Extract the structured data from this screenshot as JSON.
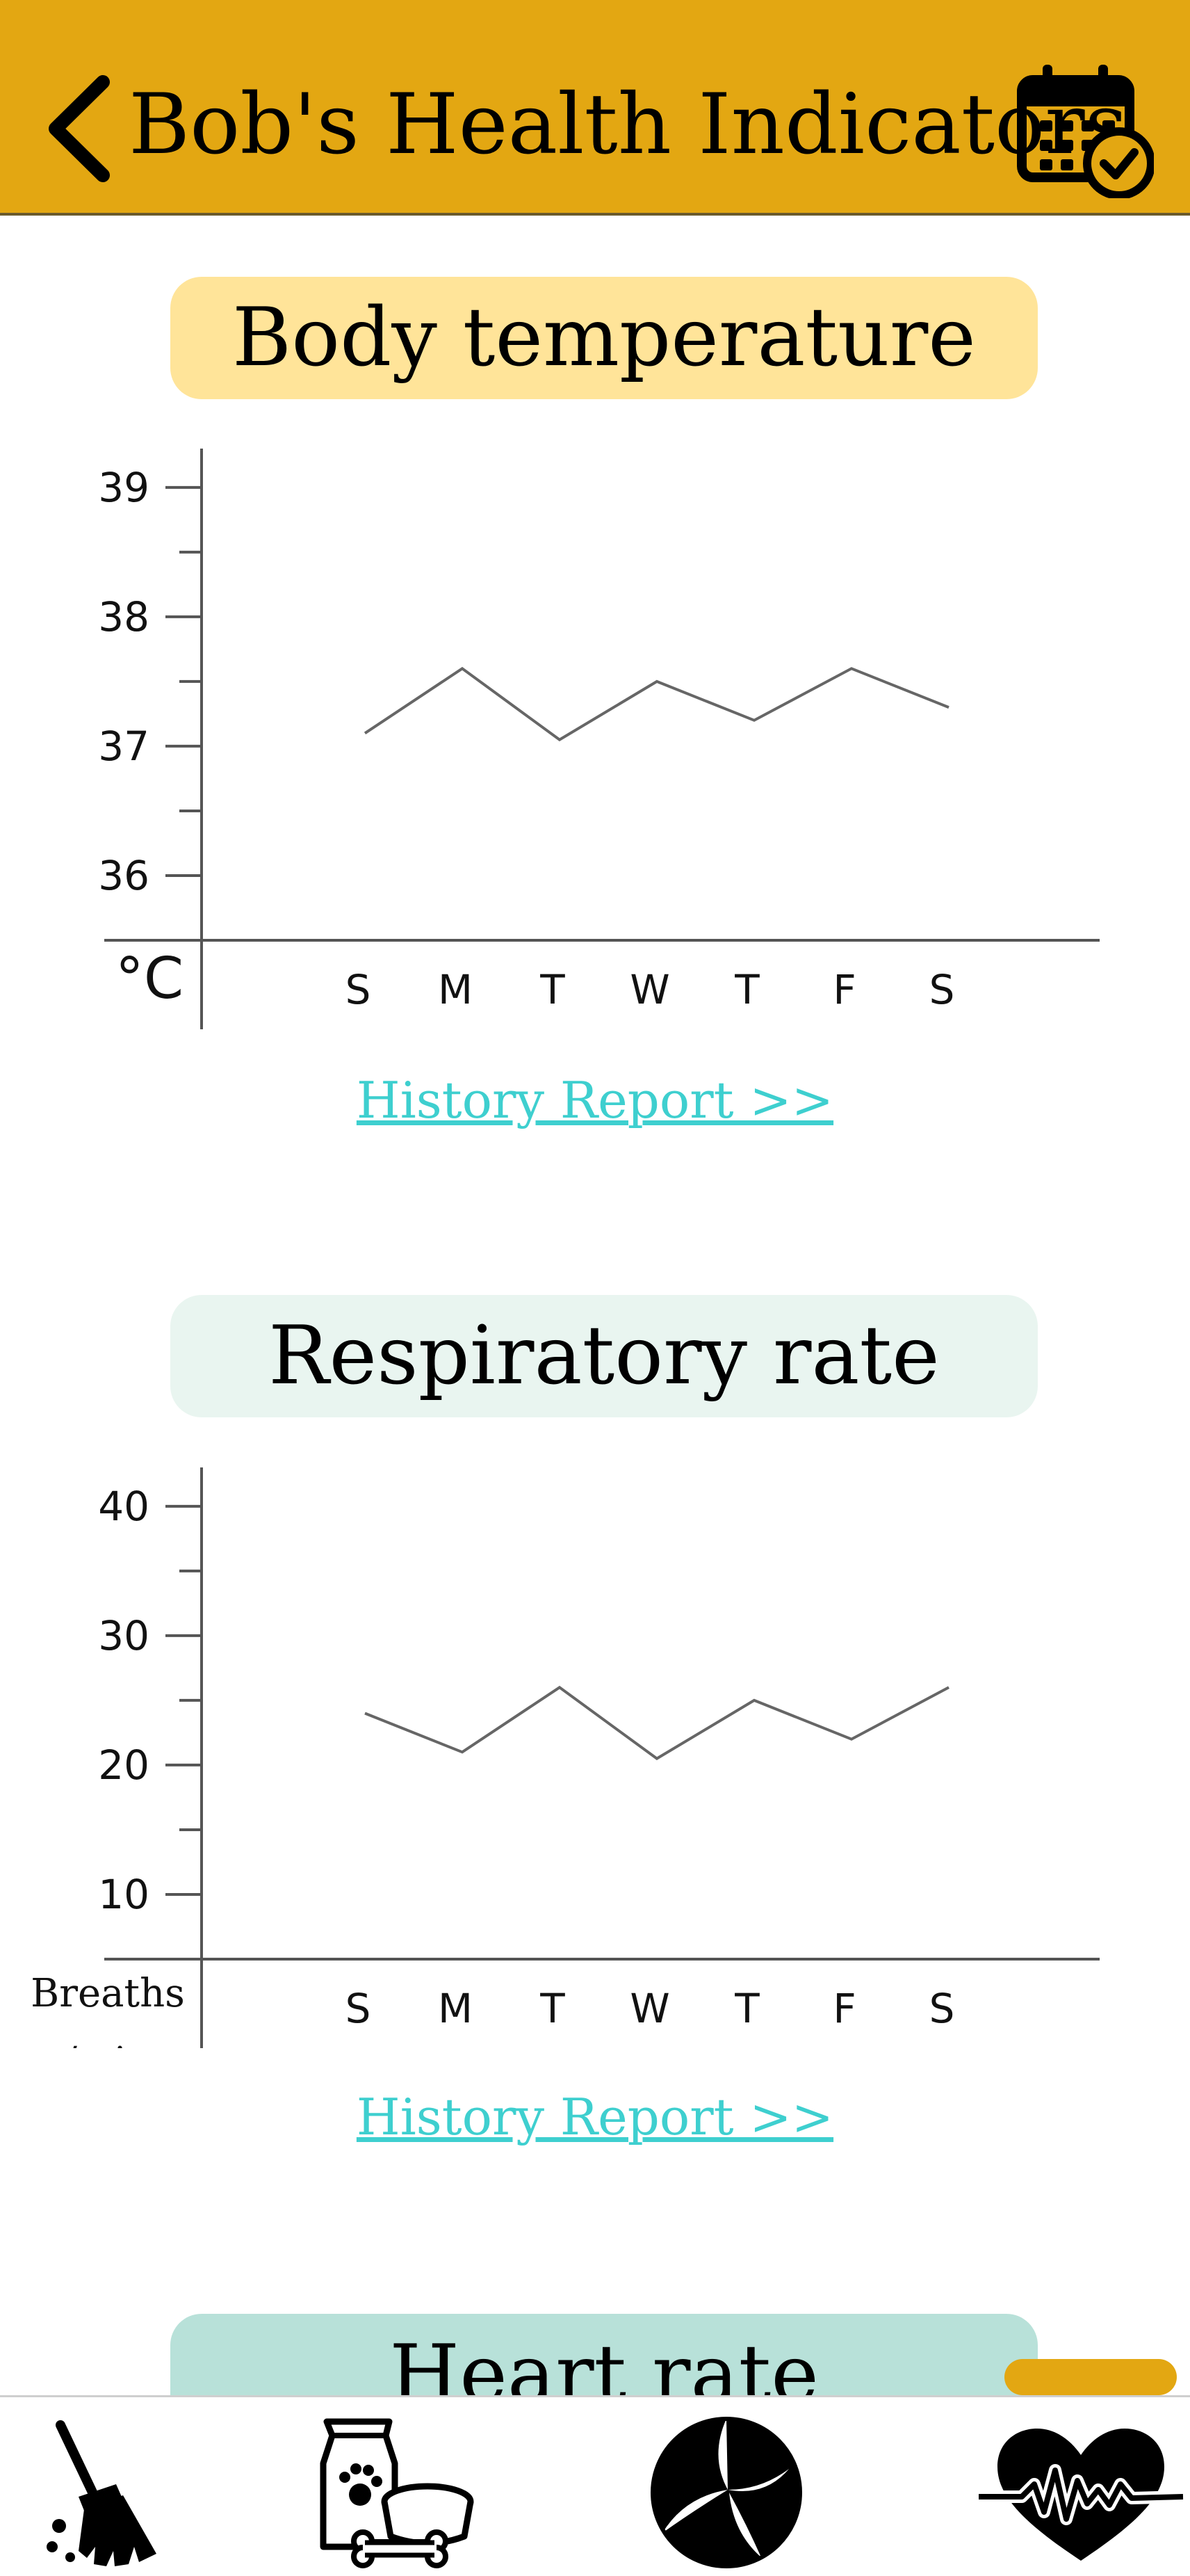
{
  "header": {
    "title": "Bob's Health Indicators",
    "back_icon": "chevron-left-icon",
    "calendar_icon": "calendar-check-icon",
    "background": "#E3A712"
  },
  "sections": [
    {
      "title": "Body temperature",
      "pill_color": "#FFE499",
      "unit": "°C",
      "history_link": "History Report >>"
    },
    {
      "title": "Respiratory rate",
      "pill_color": "#E9F5F0",
      "unit_line1": "Breaths",
      "unit_line2": "/min",
      "history_link": "History Report >>"
    },
    {
      "title": "Heart rate",
      "pill_color": "#B8E1D9"
    }
  ],
  "chart_data": [
    {
      "type": "line",
      "title": "Body temperature",
      "ylabel": "°C",
      "categories": [
        "S",
        "M",
        "T",
        "W",
        "T",
        "F",
        "S"
      ],
      "values": [
        37.1,
        37.6,
        37.05,
        37.5,
        37.2,
        37.6,
        37.3
      ],
      "yticks": [
        36,
        37,
        38,
        39
      ],
      "ylim": [
        35.5,
        39.3
      ],
      "line_color": "#666666"
    },
    {
      "type": "line",
      "title": "Respiratory rate",
      "ylabel": "Breaths /min",
      "categories": [
        "S",
        "M",
        "T",
        "W",
        "T",
        "F",
        "S"
      ],
      "values": [
        24,
        21,
        26,
        20.5,
        25,
        22,
        26
      ],
      "yticks": [
        10,
        20,
        30,
        40
      ],
      "ylim": [
        5,
        43
      ],
      "line_color": "#666666"
    }
  ],
  "bottom_nav": [
    {
      "icon": "broom-icon",
      "label": "Cleaning"
    },
    {
      "icon": "pet-food-icon",
      "label": "Food"
    },
    {
      "icon": "ball-icon",
      "label": "Play"
    },
    {
      "icon": "heartbeat-icon",
      "label": "Health"
    }
  ],
  "accent": "#E3A712",
  "link_color": "#3ECFCF"
}
